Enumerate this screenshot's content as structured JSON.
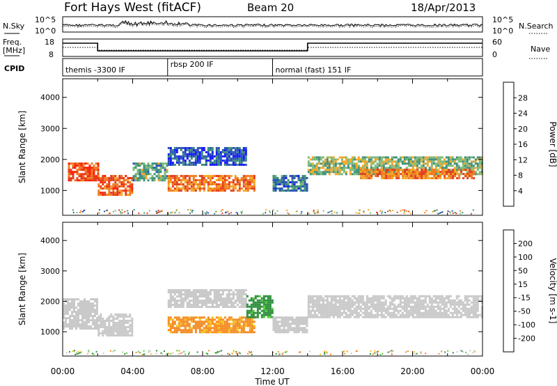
{
  "header": {
    "station": "Fort Hays West (fitACF)",
    "beam": "Beam 20",
    "date": "18/Apr/2013"
  },
  "noise_panel": {
    "left_label": "N.Sky",
    "right_label": "N.Search",
    "ytick_top": "10^5",
    "ytick_bottom": "10^0"
  },
  "freq_panel": {
    "left_label_1": "Freq.",
    "left_label_2": "[MHz]",
    "right_label": "Nave",
    "left_ticks": [
      "18",
      "8"
    ],
    "right_ticks": [
      "60",
      "0"
    ]
  },
  "cpid": {
    "label": "CPID",
    "segments": [
      {
        "start_ut": 0,
        "end_ut": 6,
        "name": "themis -3300 IF"
      },
      {
        "start_ut": 6,
        "end_ut": 12,
        "name": "rbsp 200 IF"
      },
      {
        "start_ut": 12,
        "end_ut": 24,
        "name": "normal (fast) 151 IF"
      }
    ]
  },
  "power_colorbar": {
    "title": "Power [dB]",
    "ticks": [
      "4",
      "8",
      "12",
      "16",
      "20",
      "24",
      "28"
    ],
    "colors": [
      "#1a1aff",
      "#2a55b5",
      "#3d8f78",
      "#7bb87b",
      "#f5a623",
      "#f07a1a",
      "#e53a1a",
      "#ff1a00"
    ]
  },
  "velocity_colorbar": {
    "title": "Velocity [m s-1]",
    "ticks": [
      "200",
      "100",
      "50",
      "15",
      "-15",
      "-50",
      "-100",
      "-200"
    ],
    "colors": [
      "#1a1aff",
      "#1b5fc0",
      "#2b8f3b",
      "#55cc33",
      "#c8c8c8",
      "#f5c020",
      "#f58a20",
      "#f04a20",
      "#ff0000"
    ]
  },
  "chart_data": [
    {
      "type": "heatmap",
      "name": "power",
      "ylabel": "Slant Range [km]",
      "yticks": [
        "1000",
        "2000",
        "3000",
        "4000"
      ],
      "ylim": [
        200,
        4600
      ],
      "xlim": [
        0,
        24
      ],
      "bands": [
        {
          "ut": [
            0.3,
            2.0
          ],
          "range": [
            1300,
            1900
          ],
          "level": 26
        },
        {
          "ut": [
            2.0,
            4.0
          ],
          "range": [
            850,
            1500
          ],
          "level": 24
        },
        {
          "ut": [
            4.0,
            6.0
          ],
          "range": [
            1300,
            1900
          ],
          "level": 12
        },
        {
          "ut": [
            6.0,
            11.0
          ],
          "range": [
            1000,
            1500
          ],
          "level": 22
        },
        {
          "ut": [
            6.0,
            10.5
          ],
          "range": [
            1800,
            2400
          ],
          "level": 6
        },
        {
          "ut": [
            12.0,
            14.0
          ],
          "range": [
            1000,
            1500
          ],
          "level": 8
        },
        {
          "ut": [
            14.0,
            24.0
          ],
          "range": [
            1500,
            2100
          ],
          "level": 14
        },
        {
          "ut": [
            17.0,
            23.5
          ],
          "range": [
            1400,
            1700
          ],
          "level": 22
        }
      ]
    },
    {
      "type": "heatmap",
      "name": "velocity",
      "ylabel": "Slant Range [km]",
      "yticks": [
        "1000",
        "2000",
        "3000",
        "4000"
      ],
      "ylim": [
        200,
        4600
      ],
      "xlim": [
        0,
        24
      ],
      "bands": [
        {
          "ut": [
            0.0,
            2.0
          ],
          "range": [
            1100,
            2100
          ],
          "velocity": 0
        },
        {
          "ut": [
            2.0,
            4.0
          ],
          "range": [
            850,
            1600
          ],
          "velocity": 0
        },
        {
          "ut": [
            6.0,
            11.0
          ],
          "range": [
            1000,
            1500
          ],
          "velocity": -40
        },
        {
          "ut": [
            6.0,
            10.5
          ],
          "range": [
            1800,
            2400
          ],
          "velocity": 0
        },
        {
          "ut": [
            10.5,
            12.0
          ],
          "range": [
            1500,
            2200
          ],
          "velocity": 40
        },
        {
          "ut": [
            12.0,
            14.0
          ],
          "range": [
            1000,
            1500
          ],
          "velocity": 0
        },
        {
          "ut": [
            14.0,
            24.0
          ],
          "range": [
            1500,
            2200
          ],
          "velocity": 0
        }
      ]
    }
  ],
  "x_axis": {
    "ticks": [
      "00:00",
      "04:00",
      "08:00",
      "12:00",
      "16:00",
      "20:00",
      "00:00"
    ],
    "label": "Time UT"
  }
}
